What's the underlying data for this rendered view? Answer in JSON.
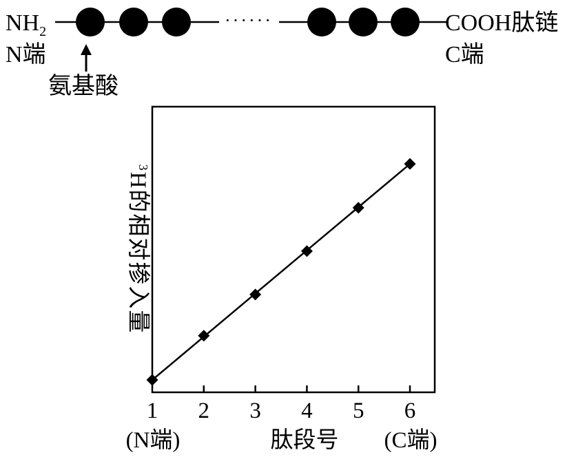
{
  "peptide": {
    "n_group": "NH",
    "n_sub": "2",
    "c_group": "COOH肽链",
    "n_end_label": "N端",
    "c_end_label": "C端",
    "amino_acid_label": "氨基酸",
    "dots": "······"
  },
  "chart_data": {
    "type": "line",
    "ylabel_sup": "3",
    "ylabel_main": "H的相对掺入量",
    "xlabel": "肽段号",
    "x_ticks": [
      "1",
      "2",
      "3",
      "4",
      "5",
      "6"
    ],
    "x_end_notes": [
      "(N端)",
      "(C端)"
    ],
    "x": [
      1,
      2,
      3,
      4,
      5,
      6
    ],
    "y": [
      0,
      1.02,
      1.97,
      2.97,
      3.97,
      4.98
    ],
    "xlim": [
      1,
      6
    ],
    "ylim": [
      0,
      6.3
    ],
    "series": [
      {
        "name": "",
        "marker": "diamond",
        "color": "#000000"
      }
    ],
    "grid": false
  }
}
